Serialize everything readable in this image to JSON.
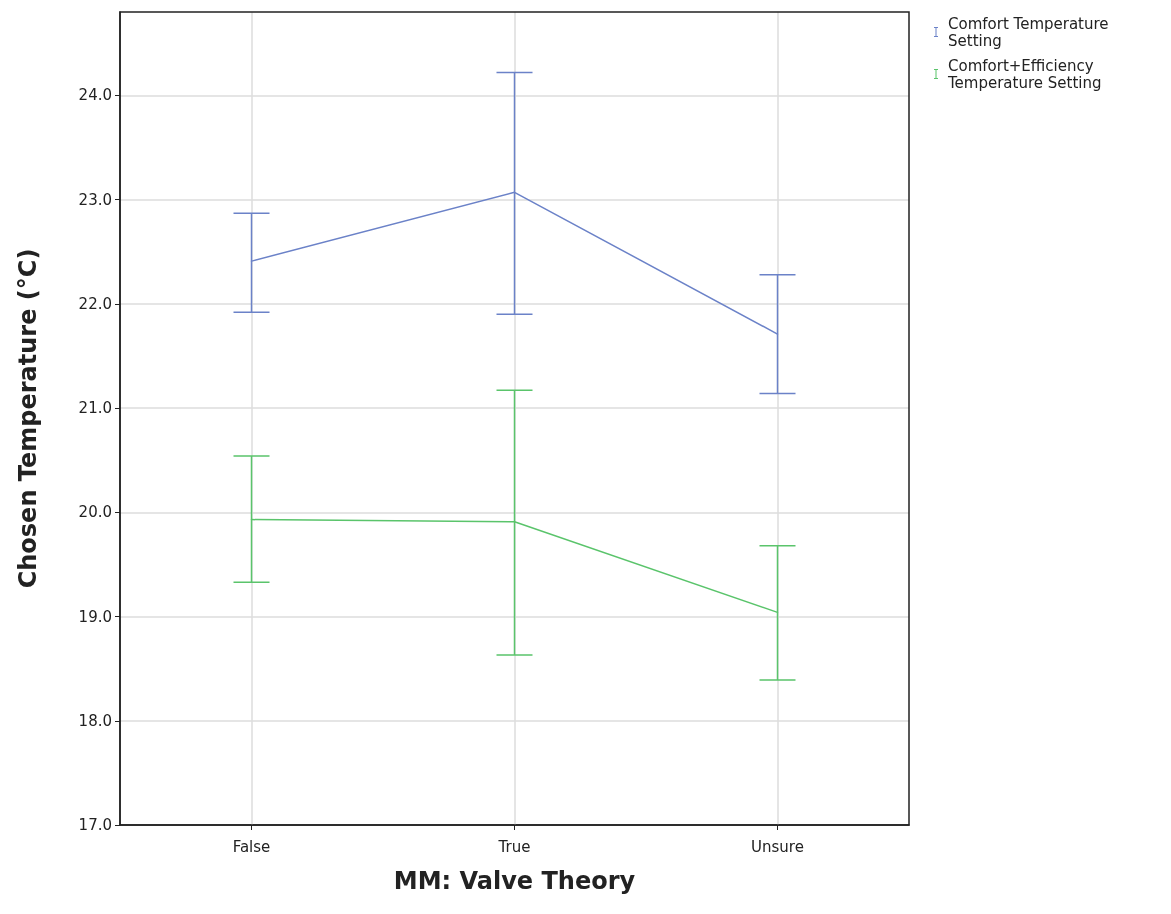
{
  "chart_data": {
    "type": "line",
    "xlabel": "MM: Valve Theory",
    "ylabel": "Chosen Temperature (°C)",
    "categories": [
      "False",
      "True",
      "Unsure"
    ],
    "series": [
      {
        "name": "Comfort Temperature Setting",
        "color": "#6b82c8",
        "values": [
          22.41,
          23.07,
          21.71
        ],
        "errors": [
          [
            21.92,
            22.87
          ],
          [
            21.9,
            24.22
          ],
          [
            21.14,
            22.28
          ]
        ]
      },
      {
        "name": "Comfort+Efficiency Temperature Setting",
        "color": "#5ac46b",
        "values": [
          19.93,
          19.91,
          19.04
        ],
        "errors": [
          [
            19.33,
            20.54
          ],
          [
            18.63,
            21.17
          ],
          [
            18.39,
            19.68
          ]
        ]
      }
    ],
    "ylim": [
      17,
      24.8
    ],
    "yticks": [
      {
        "value": 17,
        "label": "17.0"
      },
      {
        "value": 18,
        "label": "18.0"
      },
      {
        "value": 19,
        "label": "19.0"
      },
      {
        "value": 20,
        "label": "20.0"
      },
      {
        "value": 21,
        "label": "21.0"
      },
      {
        "value": 22,
        "label": "22.0"
      },
      {
        "value": 23,
        "label": "23.0"
      },
      {
        "value": 24,
        "label": "24.0"
      }
    ],
    "grid": true,
    "legend": "top right",
    "marker": "none",
    "line_style": "solid"
  }
}
